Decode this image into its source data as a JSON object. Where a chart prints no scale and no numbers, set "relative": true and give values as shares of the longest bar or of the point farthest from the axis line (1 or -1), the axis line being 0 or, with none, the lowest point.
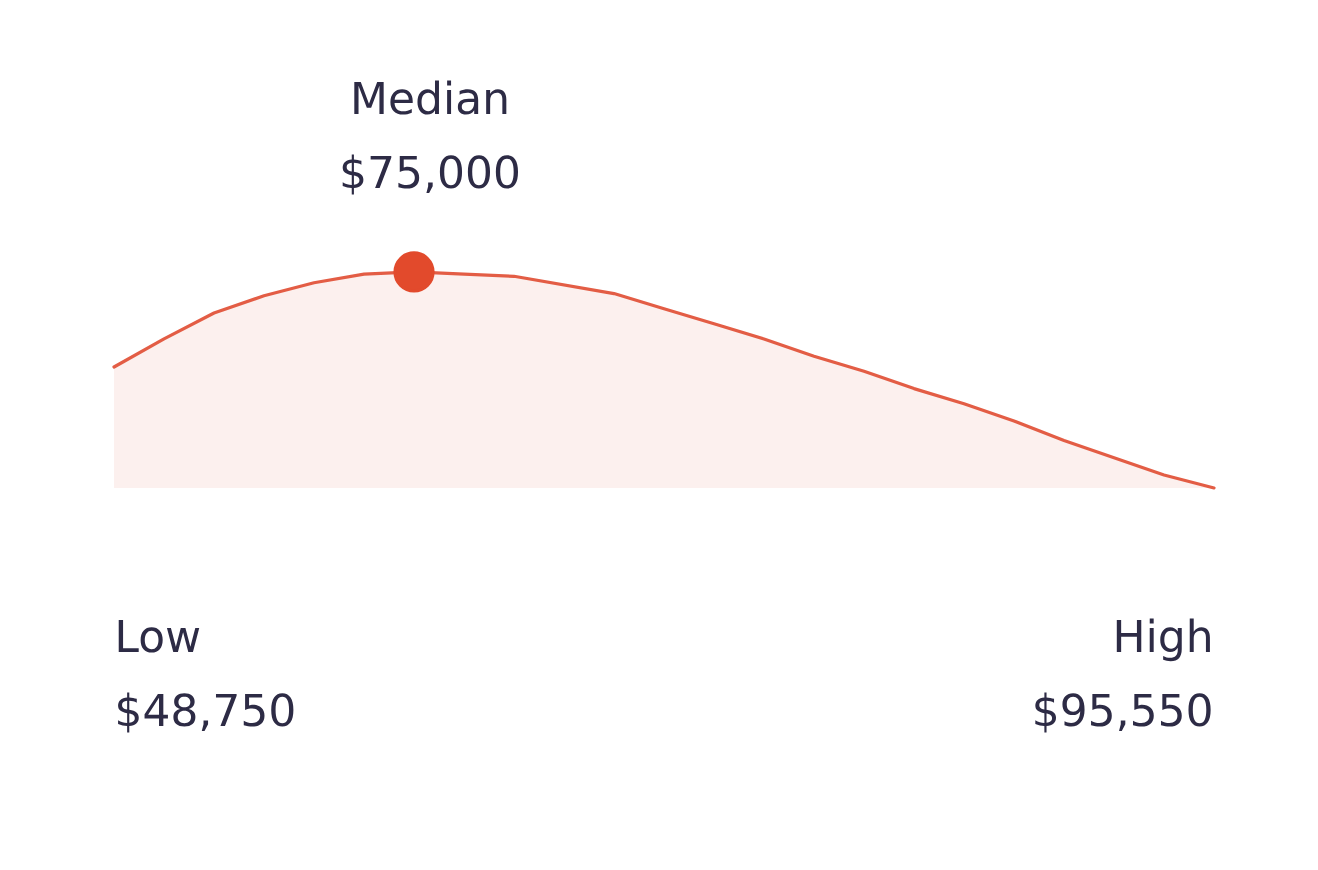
{
  "chart_data": {
    "type": "area",
    "relative": true,
    "categories": [
      null,
      null,
      null,
      null,
      null,
      null,
      null,
      null,
      null,
      null,
      null,
      null,
      null,
      null,
      null,
      null,
      null,
      null,
      null,
      null,
      null,
      null,
      null
    ],
    "series": [
      {
        "color": "#e35d45",
        "values": [
          0.56,
          0.69,
          0.81,
          0.89,
          0.95,
          0.99,
          1,
          0.99,
          0.98,
          0.94,
          0.9,
          0.83,
          0.76,
          0.69,
          0.61,
          0.54,
          0.46,
          0.39,
          0.31,
          0.22,
          0.14,
          0.06,
          0
        ]
      },
      {
        "type": "line",
        "marker": "circle",
        "color": "#e24a2c",
        "values": [
          null,
          null,
          null,
          null,
          null,
          null,
          1,
          null,
          null,
          null,
          null,
          null,
          null,
          null,
          null,
          null,
          null,
          null,
          null,
          null,
          null,
          null,
          null
        ]
      }
    ],
    "annotations": [
      "Median",
      "$75,000",
      "Low",
      "$48,750",
      "High",
      "$95,550"
    ]
  }
}
